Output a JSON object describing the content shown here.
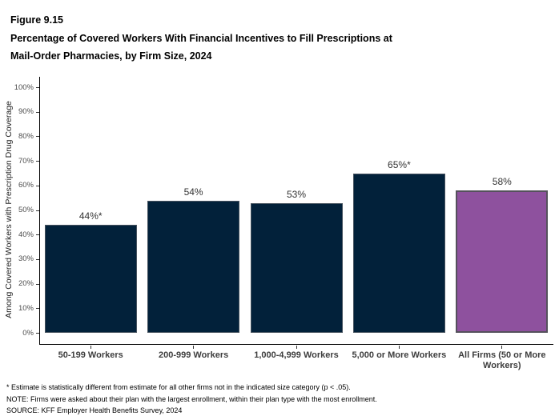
{
  "header": {
    "figure_label": "Figure 9.15",
    "title_lines": [
      "Percentage of Covered Workers With Financial Incentives to Fill Prescriptions at",
      "Mail-Order Pharmacies, by Firm Size, 2024"
    ]
  },
  "chart_data": {
    "type": "bar",
    "title": "Percentage of Covered Workers With Financial Incentives to Fill Prescriptions at Mail-Order Pharmacies, by Firm Size, 2024",
    "categories": [
      "50-199 Workers",
      "200-999 Workers",
      "1,000-4,999 Workers",
      "5,000 or More Workers",
      "All Firms (50 or More\nWorkers)"
    ],
    "values": [
      44,
      54,
      53,
      65,
      58
    ],
    "bar_labels": [
      "44%*",
      "54%",
      "53%",
      "65%*",
      "58%"
    ],
    "bar_colors": [
      "#02213A",
      "#02213A",
      "#02213A",
      "#02213A",
      "#8E519E"
    ],
    "xlabel": "",
    "ylabel": "Among Covered Workers with Prescription Drug Coverage",
    "ylim": [
      0,
      100
    ],
    "yticks": [
      0,
      10,
      20,
      30,
      40,
      50,
      60,
      70,
      80,
      90,
      100
    ],
    "ytick_labels": [
      "0%",
      "10%",
      "20%",
      "30%",
      "40%",
      "50%",
      "60%",
      "70%",
      "80%",
      "90%",
      "100%"
    ],
    "grid": false,
    "legend": "none"
  },
  "colors": {
    "bar_navy": "#02213A",
    "bar_purple": "#8E519E",
    "navy_bar_border": "#46525E",
    "purple_bar_border": "#55515C",
    "axis_line": "#000000",
    "tick_text": "#4D4D4D",
    "xlabel_text": "#3D3D3D",
    "bar_label_text": "#333333"
  },
  "footnotes": [
    "* Estimate is statistically different from estimate for all other firms not in the indicated size category (p < .05).",
    "NOTE: Firms were asked about their plan with the largest enrollment, within their plan type with the most enrollment.",
    "SOURCE: KFF Employer Health Benefits Survey, 2024"
  ]
}
